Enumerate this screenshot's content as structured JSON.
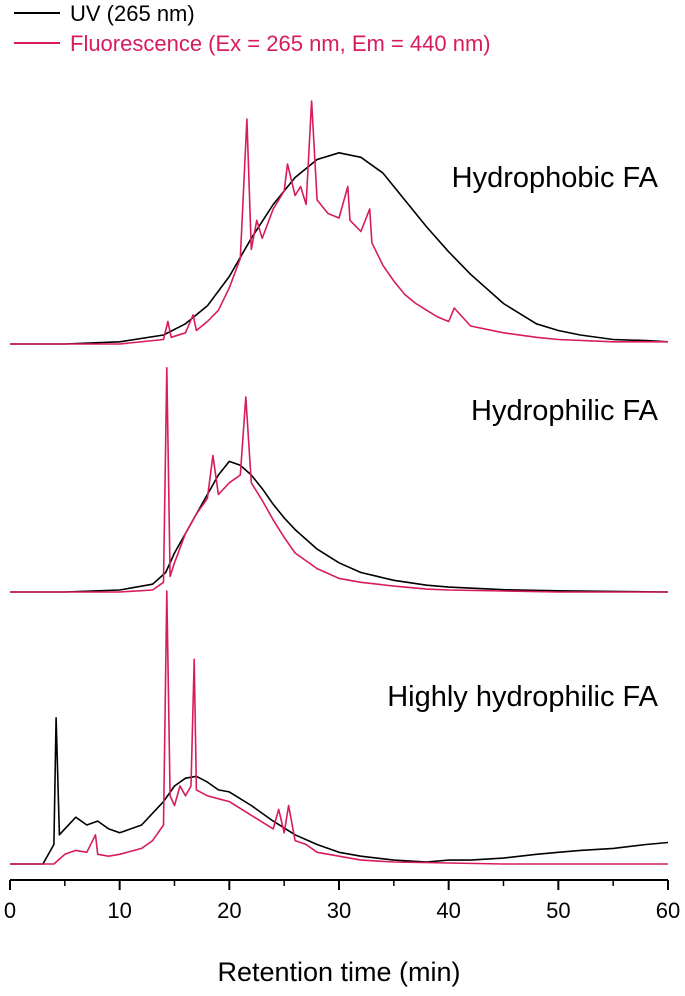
{
  "chart_data": {
    "type": "line",
    "xlabel": "Retention time (min)",
    "xlim": [
      0,
      60
    ],
    "x_ticks": [
      "0",
      "10",
      "20",
      "30",
      "40",
      "50",
      "60"
    ],
    "grid": false,
    "legend": {
      "placement": "top-left",
      "entries": [
        {
          "name": "UV (265 nm)",
          "color": "#000000"
        },
        {
          "name": "Fluorescence (Ex = 265 nm, Em = 440 nm)",
          "color": "#d81b60"
        }
      ]
    },
    "panels": [
      {
        "label": "Hydrophobic FA",
        "uv": {
          "x": [
            0,
            5,
            10,
            14,
            16,
            18,
            20,
            22,
            24,
            26,
            28,
            30,
            32,
            34,
            36,
            38,
            40,
            42,
            45,
            48,
            50,
            52,
            55,
            58,
            60
          ],
          "y": [
            0,
            0,
            0.01,
            0.04,
            0.09,
            0.17,
            0.3,
            0.47,
            0.62,
            0.74,
            0.82,
            0.85,
            0.83,
            0.76,
            0.64,
            0.52,
            0.41,
            0.31,
            0.18,
            0.09,
            0.06,
            0.04,
            0.02,
            0.015,
            0.01
          ]
        },
        "fluorescence": {
          "x": [
            0,
            10,
            14,
            14.4,
            14.7,
            16,
            16.7,
            17,
            18,
            19,
            20,
            21,
            21.6,
            22,
            22.5,
            23,
            24,
            25,
            25.3,
            26,
            26.5,
            27,
            27.5,
            28,
            29,
            30,
            30.8,
            31,
            32,
            32.8,
            33,
            34,
            35,
            36,
            37,
            38,
            39,
            40,
            40.5,
            42,
            45,
            48,
            50,
            55,
            60
          ],
          "y": [
            0,
            0,
            0.02,
            0.1,
            0.03,
            0.05,
            0.13,
            0.06,
            0.1,
            0.15,
            0.25,
            0.38,
            1.0,
            0.42,
            0.55,
            0.47,
            0.6,
            0.68,
            0.8,
            0.66,
            0.7,
            0.62,
            1.08,
            0.64,
            0.58,
            0.56,
            0.7,
            0.55,
            0.5,
            0.6,
            0.45,
            0.35,
            0.28,
            0.22,
            0.18,
            0.15,
            0.12,
            0.1,
            0.16,
            0.08,
            0.05,
            0.03,
            0.02,
            0.01,
            0.01
          ]
        }
      },
      {
        "label": "Hydrophilic FA",
        "uv": {
          "x": [
            0,
            5,
            10,
            13,
            14.2,
            15,
            16,
            17,
            18,
            19,
            20,
            21,
            22,
            23,
            24,
            25,
            26,
            28,
            30,
            32,
            35,
            38,
            40,
            45,
            50,
            55,
            60
          ],
          "y": [
            0,
            0,
            0.01,
            0.04,
            0.1,
            0.2,
            0.3,
            0.4,
            0.5,
            0.6,
            0.67,
            0.65,
            0.6,
            0.53,
            0.45,
            0.38,
            0.32,
            0.22,
            0.15,
            0.1,
            0.06,
            0.035,
            0.025,
            0.012,
            0.006,
            0.003,
            0
          ]
        },
        "fluorescence": {
          "x": [
            0,
            10,
            13,
            14,
            14.3,
            14.6,
            15,
            16,
            17,
            18,
            18.5,
            19,
            20,
            21,
            21.5,
            22,
            23,
            24,
            25,
            26,
            28,
            30,
            32,
            35,
            38,
            40,
            45,
            50,
            60
          ],
          "y": [
            0,
            0,
            0.01,
            0.05,
            1.15,
            0.08,
            0.15,
            0.3,
            0.4,
            0.48,
            0.7,
            0.5,
            0.56,
            0.6,
            1.0,
            0.56,
            0.47,
            0.37,
            0.28,
            0.2,
            0.12,
            0.07,
            0.05,
            0.03,
            0.015,
            0.01,
            0.005,
            0,
            0
          ]
        }
      },
      {
        "label": "Highly hydrophilic FA",
        "uv": {
          "x": [
            0,
            3,
            4,
            4.2,
            4.5,
            5,
            6,
            7,
            8,
            9,
            10,
            12,
            14,
            15,
            16,
            17,
            18,
            19,
            20,
            22,
            24,
            26,
            28,
            30,
            32,
            35,
            38,
            40,
            42,
            45,
            48,
            50,
            52,
            55,
            58,
            60
          ],
          "y": [
            0,
            0,
            0.1,
            0.75,
            0.15,
            0.18,
            0.24,
            0.2,
            0.22,
            0.18,
            0.16,
            0.2,
            0.32,
            0.4,
            0.44,
            0.45,
            0.42,
            0.38,
            0.37,
            0.3,
            0.22,
            0.15,
            0.1,
            0.06,
            0.04,
            0.02,
            0.01,
            0.02,
            0.02,
            0.03,
            0.05,
            0.06,
            0.07,
            0.08,
            0.1,
            0.11
          ]
        },
        "fluorescence": {
          "x": [
            0,
            4,
            5,
            6,
            7,
            7.8,
            8,
            9,
            10,
            12,
            13,
            14,
            14.3,
            14.6,
            15,
            15.5,
            16,
            16.5,
            16.8,
            17,
            18,
            20,
            22,
            24,
            24.5,
            25,
            25.4,
            26,
            27,
            28,
            30,
            32,
            35,
            40,
            45,
            50,
            55,
            60
          ],
          "y": [
            0,
            0,
            0.05,
            0.07,
            0.06,
            0.15,
            0.05,
            0.04,
            0.05,
            0.08,
            0.12,
            0.2,
            1.4,
            0.35,
            0.3,
            0.4,
            0.35,
            0.4,
            1.05,
            0.38,
            0.35,
            0.32,
            0.25,
            0.18,
            0.28,
            0.16,
            0.3,
            0.12,
            0.1,
            0.06,
            0.04,
            0.02,
            0.01,
            0.005,
            0,
            0,
            0,
            0
          ]
        }
      }
    ]
  }
}
